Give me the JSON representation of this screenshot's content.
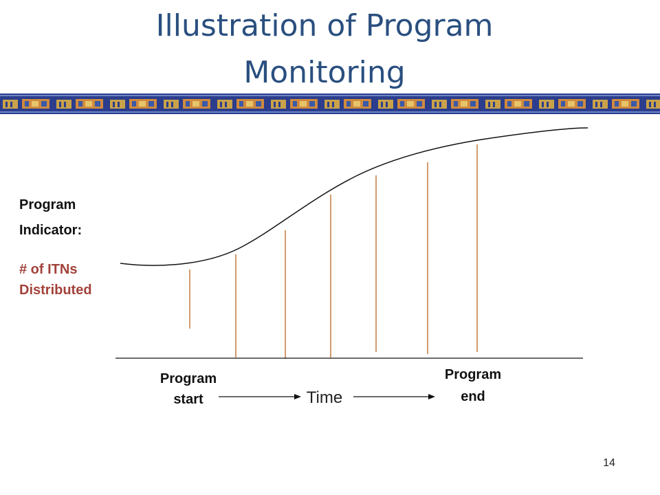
{
  "title": [
    "Illustration of Program",
    "Monitoring"
  ],
  "indicator_label": [
    "Program",
    "Indicator:"
  ],
  "indicator_name": [
    "# of ITNs",
    "Distributed"
  ],
  "start_label": [
    "Program",
    "start"
  ],
  "axis_label": "Time",
  "end_label": [
    "Program",
    "end"
  ],
  "page_number": "14"
}
